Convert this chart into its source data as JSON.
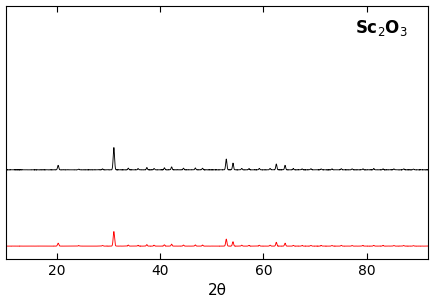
{
  "xlabel": "2θ",
  "xlim": [
    10,
    92
  ],
  "black_color": "#000000",
  "red_color": "#ff0000",
  "background_color": "#ffffff",
  "label_text": "Sc$_2$O$_3$",
  "sc2o3_peaks": [
    {
      "two_theta": 20.2,
      "intensity": 0.2,
      "sigma": 0.12
    },
    {
      "two_theta": 24.2,
      "intensity": 0.03,
      "sigma": 0.1
    },
    {
      "two_theta": 28.8,
      "intensity": 0.04,
      "sigma": 0.1
    },
    {
      "two_theta": 31.0,
      "intensity": 1.0,
      "sigma": 0.13
    },
    {
      "two_theta": 33.8,
      "intensity": 0.07,
      "sigma": 0.1
    },
    {
      "two_theta": 35.7,
      "intensity": 0.05,
      "sigma": 0.1
    },
    {
      "two_theta": 37.4,
      "intensity": 0.1,
      "sigma": 0.1
    },
    {
      "two_theta": 38.8,
      "intensity": 0.06,
      "sigma": 0.1
    },
    {
      "two_theta": 40.8,
      "intensity": 0.09,
      "sigma": 0.1
    },
    {
      "two_theta": 42.2,
      "intensity": 0.13,
      "sigma": 0.1
    },
    {
      "two_theta": 44.5,
      "intensity": 0.07,
      "sigma": 0.1
    },
    {
      "two_theta": 46.8,
      "intensity": 0.08,
      "sigma": 0.1
    },
    {
      "two_theta": 48.2,
      "intensity": 0.07,
      "sigma": 0.1
    },
    {
      "two_theta": 52.8,
      "intensity": 0.48,
      "sigma": 0.12
    },
    {
      "two_theta": 54.1,
      "intensity": 0.3,
      "sigma": 0.11
    },
    {
      "two_theta": 55.8,
      "intensity": 0.06,
      "sigma": 0.1
    },
    {
      "two_theta": 57.2,
      "intensity": 0.05,
      "sigma": 0.1
    },
    {
      "two_theta": 59.2,
      "intensity": 0.06,
      "sigma": 0.1
    },
    {
      "two_theta": 61.3,
      "intensity": 0.06,
      "sigma": 0.1
    },
    {
      "two_theta": 62.5,
      "intensity": 0.26,
      "sigma": 0.11
    },
    {
      "two_theta": 64.2,
      "intensity": 0.2,
      "sigma": 0.11
    },
    {
      "two_theta": 65.8,
      "intensity": 0.05,
      "sigma": 0.1
    },
    {
      "two_theta": 67.5,
      "intensity": 0.04,
      "sigma": 0.1
    },
    {
      "two_theta": 69.2,
      "intensity": 0.05,
      "sigma": 0.1
    },
    {
      "two_theta": 71.2,
      "intensity": 0.04,
      "sigma": 0.1
    },
    {
      "two_theta": 73.3,
      "intensity": 0.04,
      "sigma": 0.1
    },
    {
      "two_theta": 75.1,
      "intensity": 0.05,
      "sigma": 0.1
    },
    {
      "two_theta": 77.2,
      "intensity": 0.04,
      "sigma": 0.1
    },
    {
      "two_theta": 79.3,
      "intensity": 0.04,
      "sigma": 0.1
    },
    {
      "two_theta": 81.4,
      "intensity": 0.05,
      "sigma": 0.1
    },
    {
      "two_theta": 83.2,
      "intensity": 0.04,
      "sigma": 0.1
    },
    {
      "two_theta": 85.3,
      "intensity": 0.04,
      "sigma": 0.1
    },
    {
      "two_theta": 87.2,
      "intensity": 0.04,
      "sigma": 0.1
    },
    {
      "two_theta": 89.1,
      "intensity": 0.03,
      "sigma": 0.1
    }
  ],
  "red_scale": 0.062,
  "red_baseline": 0.055,
  "black_scale": 0.095,
  "black_baseline": 0.38,
  "ylim": [
    0,
    1.08
  ],
  "xticks": [
    20,
    40,
    60,
    80
  ],
  "xtick_labels": [
    "20",
    "40",
    "60",
    "80"
  ]
}
